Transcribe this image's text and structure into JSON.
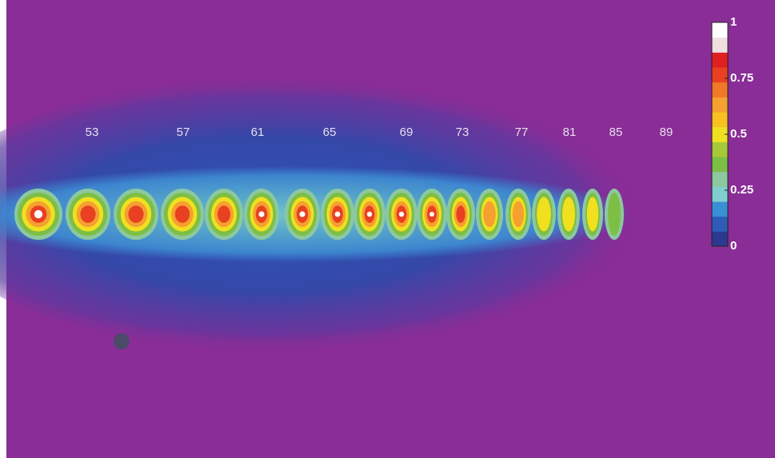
{
  "image": {
    "harmonic_labels": [
      "53",
      "57",
      "61",
      "65",
      "69",
      "73",
      "77",
      "81",
      "85",
      "89"
    ],
    "colorbar": {
      "ticks": [
        {
          "value": 0,
          "label": "0"
        },
        {
          "value": 0.25,
          "label": "0.25"
        },
        {
          "value": 0.5,
          "label": "0.5"
        },
        {
          "value": 0.75,
          "label": "0.75"
        },
        {
          "value": 1,
          "label": "1"
        }
      ]
    }
  }
}
